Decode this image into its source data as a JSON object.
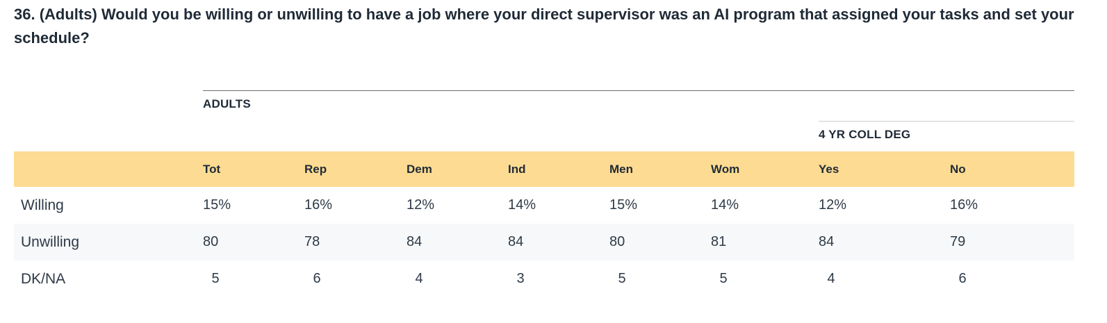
{
  "question": "36. (Adults) Would you be willing or unwilling to have a job where your direct supervisor was an AI program that assigned your tasks and set your schedule?",
  "groups": {
    "adults": "ADULTS",
    "college": "4 YR COLL DEG"
  },
  "colors": {
    "header_band": "#fddb92",
    "alt_row": "#f6f8f9",
    "text": "#1f2a36"
  },
  "chart_data": {
    "type": "table",
    "title": "36. (Adults) Would you be willing or unwilling to have a job where your direct supervisor was an AI program that assigned your tasks and set your schedule?",
    "column_groups": [
      {
        "name": "ADULTS",
        "columns": [
          "Tot",
          "Rep",
          "Dem",
          "Ind",
          "Men",
          "Wom",
          "Yes",
          "No"
        ]
      },
      {
        "name": "4 YR COLL DEG",
        "columns": [
          "Yes",
          "No"
        ]
      }
    ],
    "columns": [
      "Tot",
      "Rep",
      "Dem",
      "Ind",
      "Men",
      "Wom",
      "Yes",
      "No"
    ],
    "rows": [
      {
        "label": "Willing",
        "values": [
          "15%",
          "16%",
          "12%",
          "14%",
          "15%",
          "14%",
          "12%",
          "16%"
        ]
      },
      {
        "label": "Unwilling",
        "values": [
          "80",
          "78",
          "84",
          "84",
          "80",
          "81",
          "84",
          "79"
        ]
      },
      {
        "label": "DK/NA",
        "values": [
          "5",
          "6",
          "4",
          "3",
          "5",
          "5",
          "4",
          "6"
        ]
      }
    ]
  }
}
